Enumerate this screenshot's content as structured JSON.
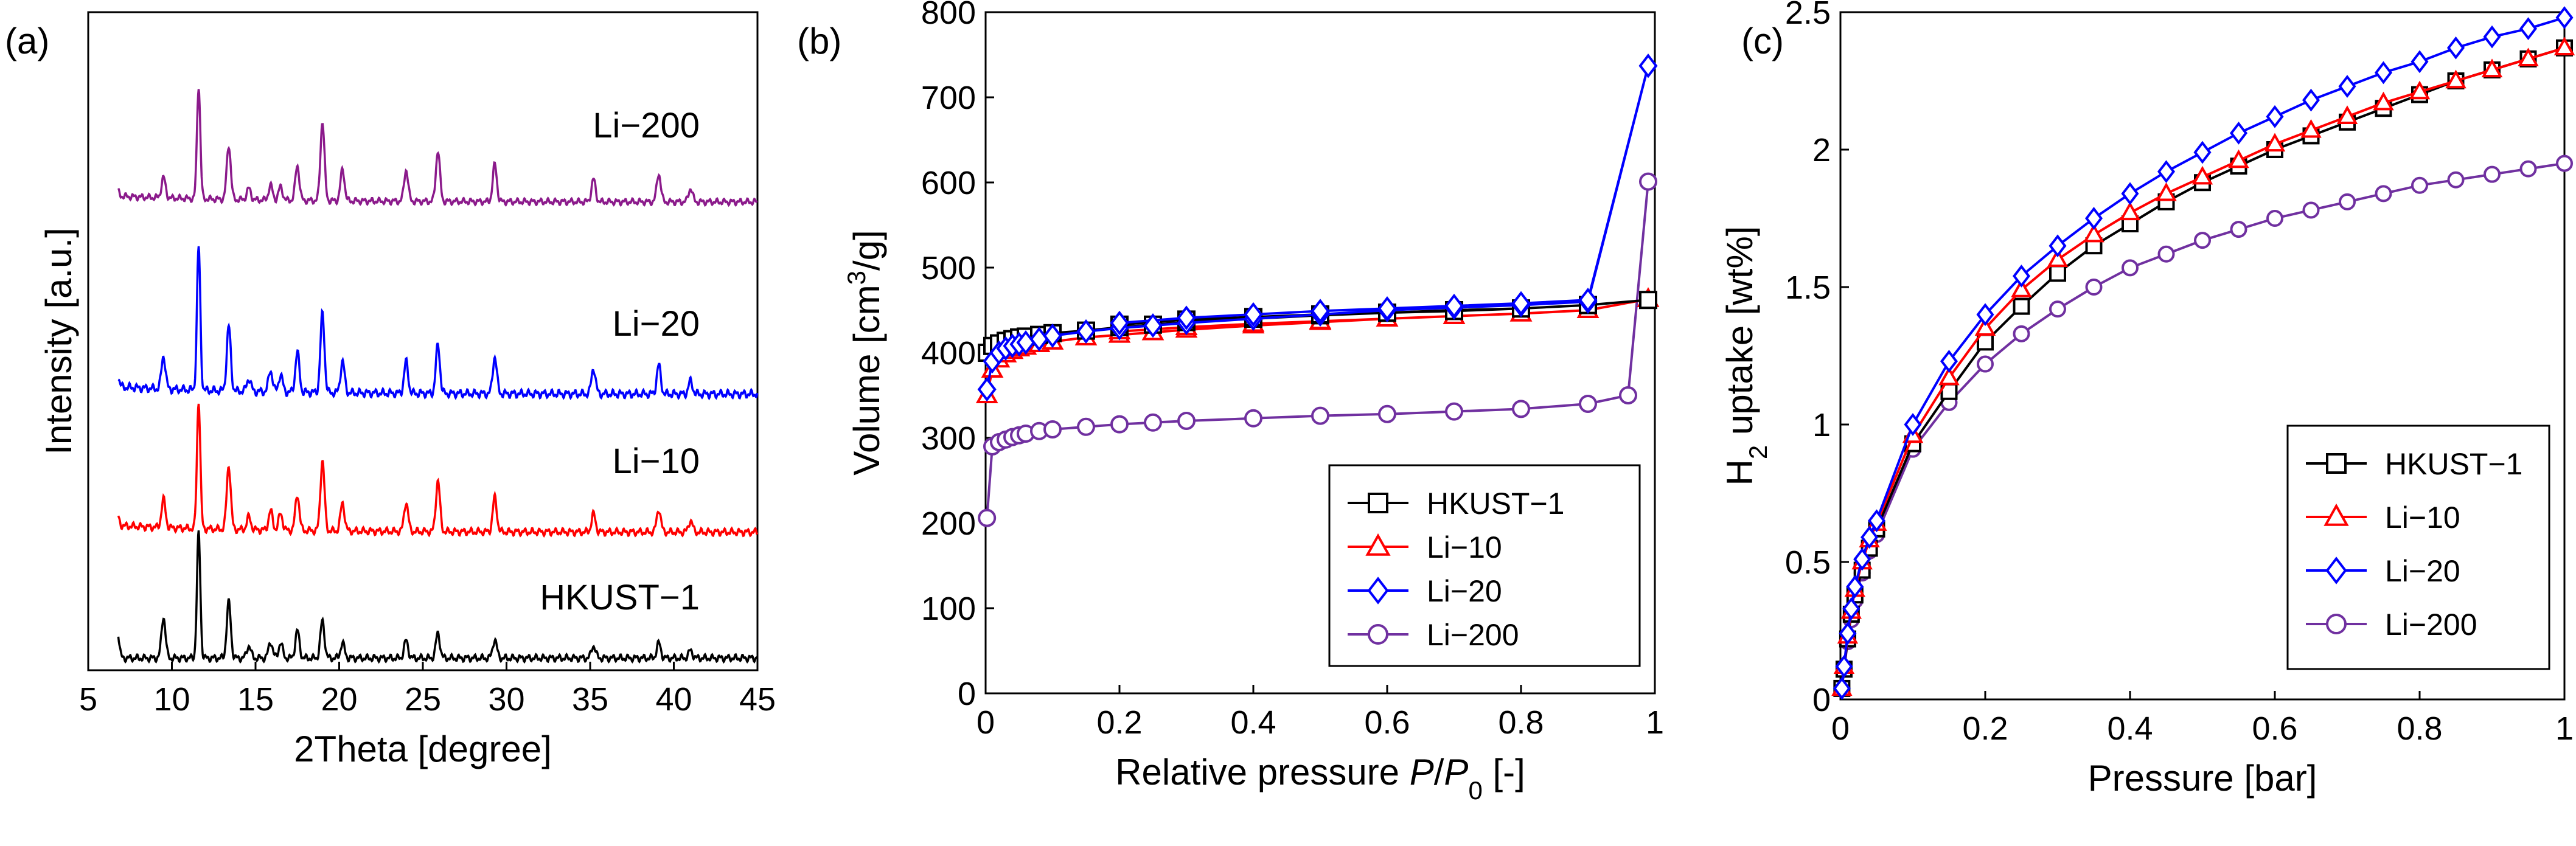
{
  "figure": {
    "panel_labels": [
      "(a)",
      "(b)",
      "(c)"
    ]
  },
  "chart_data": [
    {
      "panel": "(a)",
      "type": "line",
      "title": "",
      "xlabel": "2Theta [degree]",
      "ylabel": "Intensity [a.u.]",
      "xlim": [
        5,
        45
      ],
      "xticks": [
        "5",
        "10",
        "15",
        "20",
        "25",
        "30",
        "35",
        "40",
        "45"
      ],
      "yticks_shown": false,
      "peak_positions_deg": [
        6.7,
        9.5,
        11.6,
        13.4,
        14.6,
        15.9,
        16.5,
        17.5,
        19.0,
        20.2,
        24.0,
        25.9,
        29.3,
        35.2,
        39.1,
        41.0
      ],
      "series": [
        {
          "name": "HKUST−1",
          "color": "#000000",
          "peak_heights": [
            0.28,
            0.33,
            1.0,
            0.45,
            0.1,
            0.13,
            0.12,
            0.22,
            0.3,
            0.12,
            0.14,
            0.2,
            0.15,
            0.1,
            0.12,
            0.06
          ]
        },
        {
          "name": "Li−10",
          "color": "#ff0000",
          "peak_heights": [
            0.1,
            0.22,
            1.0,
            0.5,
            0.1,
            0.15,
            0.13,
            0.28,
            0.55,
            0.22,
            0.23,
            0.4,
            0.27,
            0.14,
            0.18,
            0.09
          ]
        },
        {
          "name": "Li−20",
          "color": "#0000ff",
          "peak_heights": [
            0.1,
            0.23,
            1.0,
            0.45,
            0.09,
            0.15,
            0.12,
            0.28,
            0.55,
            0.22,
            0.22,
            0.34,
            0.26,
            0.18,
            0.2,
            0.09
          ]
        },
        {
          "name": "Li−200",
          "color": "#8b1a8b",
          "peak_heights": [
            0.06,
            0.18,
            1.0,
            0.48,
            0.1,
            0.13,
            0.12,
            0.31,
            0.7,
            0.28,
            0.28,
            0.45,
            0.33,
            0.2,
            0.25,
            0.12
          ]
        }
      ]
    },
    {
      "panel": "(b)",
      "type": "line",
      "title": "",
      "xlabel": "Relative pressure P/P0 [-]",
      "xlabel_parts": {
        "lead": "Relative pressure ",
        "p": "P",
        "slash": "/",
        "p0": "P",
        "p0sub": "0",
        "tail": " [-]"
      },
      "ylabel": "Volume [cm3/g]",
      "ylabel_parts": {
        "lead": "Volume [cm",
        "sup": "3",
        "tail": "/g]"
      },
      "xlim": [
        0,
        1
      ],
      "ylim": [
        0,
        800
      ],
      "xticks": [
        "0",
        "0.2",
        "0.4",
        "0.6",
        "0.8",
        "1"
      ],
      "yticks": [
        "0",
        "100",
        "200",
        "300",
        "400",
        "500",
        "600",
        "700",
        "800"
      ],
      "legend": {
        "position": "bottom-right",
        "entries": [
          "HKUST−1",
          "Li−10",
          "Li−20",
          "Li−200"
        ]
      },
      "series": [
        {
          "name": "HKUST−1",
          "color": "#000000",
          "marker": "square",
          "x": [
            0.002,
            0.01,
            0.02,
            0.03,
            0.04,
            0.05,
            0.06,
            0.08,
            0.1,
            0.15,
            0.2,
            0.25,
            0.3,
            0.4,
            0.5,
            0.6,
            0.7,
            0.8,
            0.9,
            0.99,
            0.9,
            0.8,
            0.7,
            0.6,
            0.5,
            0.4,
            0.3,
            0.2
          ],
          "y": [
            400,
            408,
            411,
            414,
            416,
            418,
            419,
            421,
            423,
            426,
            430,
            433,
            436,
            440,
            444,
            447,
            450,
            452,
            456,
            462,
            456,
            452,
            449,
            447,
            445,
            442,
            439,
            433
          ]
        },
        {
          "name": "Li−10",
          "color": "#ff0000",
          "marker": "triangle",
          "x": [
            0.002,
            0.01,
            0.02,
            0.03,
            0.04,
            0.05,
            0.06,
            0.08,
            0.1,
            0.15,
            0.2,
            0.25,
            0.3,
            0.4,
            0.5,
            0.6,
            0.7,
            0.8,
            0.9,
            0.99,
            0.9,
            0.8,
            0.7,
            0.6,
            0.5,
            0.4,
            0.3,
            0.2
          ],
          "y": [
            350,
            380,
            392,
            398,
            402,
            405,
            407,
            410,
            413,
            418,
            421,
            424,
            427,
            432,
            436,
            440,
            443,
            446,
            450,
            463,
            450,
            446,
            443,
            440,
            437,
            434,
            430,
            425
          ]
        },
        {
          "name": "Li−20",
          "color": "#0000ff",
          "marker": "diamond",
          "x": [
            0.002,
            0.01,
            0.02,
            0.03,
            0.04,
            0.05,
            0.06,
            0.08,
            0.1,
            0.15,
            0.2,
            0.25,
            0.3,
            0.4,
            0.5,
            0.6,
            0.7,
            0.8,
            0.9,
            0.99,
            0.9,
            0.8,
            0.7,
            0.6,
            0.5,
            0.4,
            0.3,
            0.2
          ],
          "y": [
            357,
            390,
            400,
            405,
            408,
            410,
            412,
            416,
            420,
            425,
            429,
            432,
            435,
            440,
            445,
            450,
            453,
            456,
            460,
            737,
            462,
            458,
            455,
            452,
            449,
            445,
            441,
            435
          ]
        },
        {
          "name": "Li−200",
          "color": "#7030a0",
          "marker": "circle",
          "x": [
            0.002,
            0.01,
            0.02,
            0.03,
            0.04,
            0.05,
            0.06,
            0.08,
            0.1,
            0.15,
            0.2,
            0.25,
            0.3,
            0.4,
            0.5,
            0.6,
            0.7,
            0.8,
            0.9,
            0.96,
            0.99
          ],
          "y": [
            206,
            290,
            295,
            298,
            301,
            303,
            305,
            308,
            310,
            313,
            316,
            318,
            320,
            323,
            326,
            328,
            331,
            334,
            340,
            350,
            601
          ]
        }
      ]
    },
    {
      "panel": "(c)",
      "type": "line",
      "title": "",
      "xlabel": "Pressure [bar]",
      "ylabel": "H2 uptake [wt%]",
      "ylabel_parts": {
        "lead": "H",
        "sub": "2",
        "tail": " uptake [wt%]"
      },
      "xlim": [
        0,
        1
      ],
      "ylim": [
        0,
        2.5
      ],
      "xticks": [
        "0",
        "0.2",
        "0.4",
        "0.6",
        "0.8",
        "1"
      ],
      "yticks": [
        "0",
        "0.5",
        "1",
        "1.5",
        "2",
        "2.5"
      ],
      "legend": {
        "position": "bottom-right",
        "entries": [
          "HKUST−1",
          "Li−10",
          "Li−20",
          "Li−200"
        ]
      },
      "series": [
        {
          "name": "HKUST−1",
          "color": "#000000",
          "marker": "square",
          "x": [
            0.002,
            0.005,
            0.01,
            0.015,
            0.02,
            0.03,
            0.04,
            0.05,
            0.1,
            0.15,
            0.2,
            0.25,
            0.3,
            0.35,
            0.4,
            0.45,
            0.5,
            0.55,
            0.6,
            0.65,
            0.7,
            0.75,
            0.8,
            0.85,
            0.9,
            0.95,
            1.0
          ],
          "y": [
            0.04,
            0.11,
            0.22,
            0.31,
            0.38,
            0.47,
            0.55,
            0.62,
            0.93,
            1.12,
            1.3,
            1.43,
            1.55,
            1.65,
            1.73,
            1.81,
            1.88,
            1.94,
            2.0,
            2.05,
            2.1,
            2.15,
            2.2,
            2.25,
            2.29,
            2.33,
            2.37
          ]
        },
        {
          "name": "Li−10",
          "color": "#ff0000",
          "marker": "triangle",
          "x": [
            0.002,
            0.005,
            0.01,
            0.015,
            0.02,
            0.03,
            0.04,
            0.05,
            0.1,
            0.15,
            0.2,
            0.25,
            0.3,
            0.35,
            0.4,
            0.45,
            0.5,
            0.55,
            0.6,
            0.65,
            0.7,
            0.75,
            0.8,
            0.85,
            0.9,
            0.95,
            1.0
          ],
          "y": [
            0.04,
            0.12,
            0.23,
            0.32,
            0.4,
            0.5,
            0.58,
            0.64,
            0.96,
            1.17,
            1.35,
            1.49,
            1.6,
            1.69,
            1.77,
            1.84,
            1.9,
            1.96,
            2.02,
            2.07,
            2.12,
            2.17,
            2.21,
            2.25,
            2.29,
            2.33,
            2.37
          ]
        },
        {
          "name": "Li−20",
          "color": "#0000ff",
          "marker": "diamond",
          "x": [
            0.002,
            0.005,
            0.01,
            0.015,
            0.02,
            0.03,
            0.04,
            0.05,
            0.1,
            0.15,
            0.2,
            0.25,
            0.3,
            0.35,
            0.4,
            0.45,
            0.5,
            0.55,
            0.6,
            0.65,
            0.7,
            0.75,
            0.8,
            0.85,
            0.9,
            0.95,
            1.0
          ],
          "y": [
            0.04,
            0.12,
            0.24,
            0.33,
            0.41,
            0.51,
            0.59,
            0.65,
            1.0,
            1.23,
            1.4,
            1.54,
            1.65,
            1.75,
            1.84,
            1.92,
            1.99,
            2.06,
            2.12,
            2.18,
            2.23,
            2.28,
            2.32,
            2.37,
            2.41,
            2.44,
            2.48
          ]
        },
        {
          "name": "Li−200",
          "color": "#7030a0",
          "marker": "circle",
          "x": [
            0.002,
            0.005,
            0.01,
            0.015,
            0.02,
            0.03,
            0.04,
            0.05,
            0.1,
            0.15,
            0.2,
            0.25,
            0.3,
            0.35,
            0.4,
            0.45,
            0.5,
            0.55,
            0.6,
            0.65,
            0.7,
            0.75,
            0.8,
            0.85,
            0.9,
            0.95,
            1.0
          ],
          "y": [
            0.04,
            0.11,
            0.21,
            0.29,
            0.36,
            0.46,
            0.54,
            0.6,
            0.91,
            1.08,
            1.22,
            1.33,
            1.42,
            1.5,
            1.57,
            1.62,
            1.67,
            1.71,
            1.75,
            1.78,
            1.81,
            1.84,
            1.87,
            1.89,
            1.91,
            1.93,
            1.95
          ]
        }
      ]
    }
  ]
}
